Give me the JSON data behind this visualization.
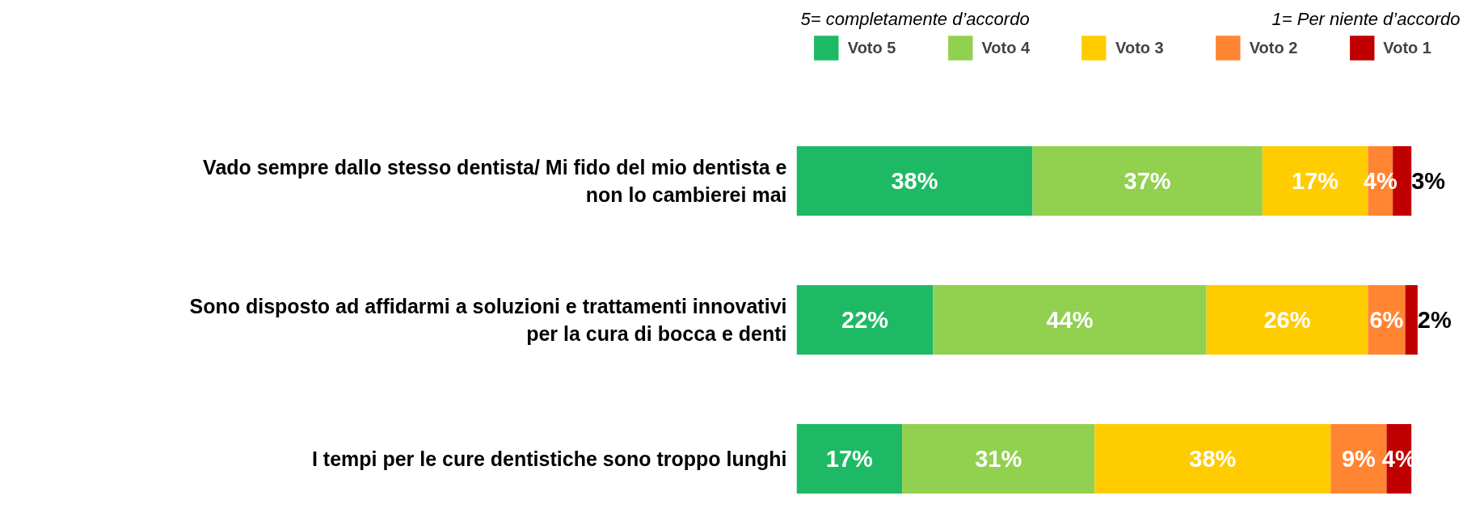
{
  "chart_data": {
    "type": "bar",
    "orientation": "horizontal",
    "stacked": true,
    "legend": "top",
    "grid": false,
    "categories": [
      "Vado sempre dallo stesso dentista/ Mi fido del mio dentista e non lo cambierei mai",
      "Sono disposto ad affidarmi a soluzioni e trattamenti innovativi per la cura di bocca e denti",
      "I tempi per le cure dentistiche sono troppo lunghi"
    ],
    "series": [
      {
        "name": "Voto 5",
        "color": "#1eb964",
        "values": [
          38,
          22,
          17
        ],
        "value_labels": [
          "38%",
          "22%",
          "17%"
        ]
      },
      {
        "name": "Voto 4",
        "color": "#92d050",
        "values": [
          37,
          44,
          31
        ],
        "value_labels": [
          "37%",
          "44%",
          "31%"
        ]
      },
      {
        "name": "Voto 3",
        "color": "#ffcc00",
        "values": [
          17,
          26,
          38
        ],
        "value_labels": [
          "17%",
          "26%",
          "38%"
        ]
      },
      {
        "name": "Voto 2",
        "color": "#ff8533",
        "values": [
          4,
          6,
          9
        ],
        "value_labels": [
          "4%",
          "6%",
          "9%"
        ]
      },
      {
        "name": "Voto 1",
        "color": "#c00000",
        "values": [
          3,
          2,
          4
        ],
        "value_labels": [
          "3%",
          "2%",
          "4%"
        ]
      }
    ],
    "annotations": [
      "5= completamente d’accordo",
      "1= Per niente d’accordo"
    ]
  }
}
